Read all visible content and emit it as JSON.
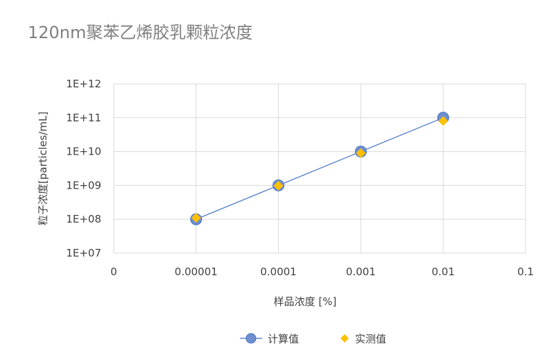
{
  "chart_data": {
    "type": "scatter",
    "title": "120nm聚苯乙烯胶乳颗粒浓度",
    "xlabel": "样品浓度 [%]",
    "ylabel": "粒子浓度[particles/mL]",
    "x_scale": "log",
    "y_scale": "log",
    "xlim": [
      1e-06,
      0.1
    ],
    "ylim": [
      10000000,
      1000000000000
    ],
    "x_tick_values": [
      1e-06,
      1e-05,
      0.0001,
      0.001,
      0.01,
      0.1
    ],
    "x_tick_labels": [
      "0",
      "0.00001",
      "0.0001",
      "0.001",
      "0.01",
      "0.1"
    ],
    "y_tick_values": [
      10000000,
      100000000,
      1000000000,
      10000000000,
      100000000000,
      1000000000000
    ],
    "y_tick_labels": [
      "1E+07",
      "1E+08",
      "1E+09",
      "1E+10",
      "1E+11",
      "1E+12"
    ],
    "grid": true,
    "legend_position": "bottom",
    "series": [
      {
        "name": "计算值",
        "marker": "circle",
        "line": true,
        "color": "#4472c4",
        "marker_color": "#6f8fcf",
        "x": [
          1e-05,
          0.0001,
          0.001,
          0.01
        ],
        "y": [
          100000000,
          1000000000,
          10000000000,
          100000000000
        ]
      },
      {
        "name": "实测值",
        "marker": "diamond",
        "line": false,
        "color": "#ffc000",
        "x": [
          1e-05,
          0.0001,
          0.001,
          0.01
        ],
        "y": [
          110000000,
          980000000,
          9000000000,
          80000000000
        ]
      }
    ]
  },
  "colors": {
    "gridline": "#d9d9d9",
    "axis": "#bfbfbf"
  }
}
